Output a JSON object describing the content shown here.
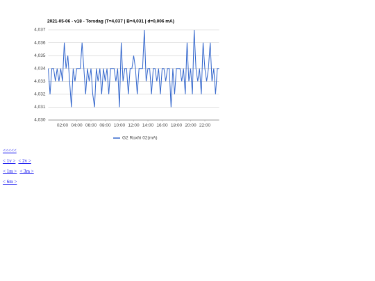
{
  "chart_data": {
    "type": "line",
    "title": "2021-05-06 - v18 - Torsdag (T=4,037 | B=4,031 | d=0,006 mA)",
    "x": [
      0,
      0.25,
      0.5,
      0.75,
      1,
      1.25,
      1.5,
      1.75,
      2,
      2.25,
      2.5,
      2.75,
      3,
      3.25,
      3.5,
      3.75,
      4,
      4.25,
      4.5,
      4.75,
      5,
      5.25,
      5.5,
      5.75,
      6,
      6.25,
      6.5,
      6.75,
      7,
      7.25,
      7.5,
      7.75,
      8,
      8.25,
      8.5,
      8.75,
      9,
      9.25,
      9.5,
      9.75,
      10,
      10.25,
      10.5,
      10.75,
      11,
      11.25,
      11.5,
      11.75,
      12,
      12.25,
      12.5,
      12.75,
      13,
      13.25,
      13.5,
      13.75,
      14,
      14.25,
      14.5,
      14.75,
      15,
      15.25,
      15.5,
      15.75,
      16,
      16.25,
      16.5,
      16.75,
      17,
      17.25,
      17.5,
      17.75,
      18,
      18.25,
      18.5,
      18.75,
      19,
      19.25,
      19.5,
      19.75,
      20,
      20.25,
      20.5,
      20.75,
      21,
      21.25,
      21.5,
      21.75,
      22,
      22.25,
      22.5,
      22.75,
      23,
      23.25,
      23.5,
      23.75,
      24
    ],
    "series": [
      {
        "name": "G2 Roxfri 02(mA)",
        "color": "#3366cc",
        "values": [
          4.034,
          4.032,
          4.034,
          4.034,
          4.033,
          4.034,
          4.033,
          4.034,
          4.033,
          4.036,
          4.034,
          4.035,
          4.033,
          4.031,
          4.034,
          4.033,
          4.034,
          4.034,
          4.034,
          4.036,
          4.034,
          4.032,
          4.034,
          4.033,
          4.034,
          4.032,
          4.031,
          4.034,
          4.033,
          4.034,
          4.032,
          4.034,
          4.033,
          4.034,
          4.032,
          4.034,
          4.034,
          4.034,
          4.033,
          4.034,
          4.031,
          4.036,
          4.033,
          4.034,
          4.034,
          4.032,
          4.034,
          4.034,
          4.035,
          4.034,
          4.032,
          4.034,
          4.034,
          4.034,
          4.037,
          4.033,
          4.034,
          4.034,
          4.032,
          4.034,
          4.034,
          4.033,
          4.034,
          4.032,
          4.034,
          4.034,
          4.033,
          4.034,
          4.034,
          4.031,
          4.034,
          4.032,
          4.034,
          4.034,
          4.034,
          4.033,
          4.034,
          4.032,
          4.036,
          4.033,
          4.034,
          4.032,
          4.037,
          4.034,
          4.033,
          4.034,
          4.032,
          4.036,
          4.034,
          4.033,
          4.034,
          4.036,
          4.033,
          4.034,
          4.032,
          4.034,
          4.034
        ]
      }
    ],
    "xlim": [
      0,
      24
    ],
    "xticks": [
      {
        "value": 2,
        "label": "02:00"
      },
      {
        "value": 4,
        "label": "04:00"
      },
      {
        "value": 6,
        "label": "06:00"
      },
      {
        "value": 8,
        "label": "08:00"
      },
      {
        "value": 10,
        "label": "10:00"
      },
      {
        "value": 12,
        "label": "12:00"
      },
      {
        "value": 14,
        "label": "14:00"
      },
      {
        "value": 16,
        "label": "16:00"
      },
      {
        "value": 18,
        "label": "18:00"
      },
      {
        "value": 20,
        "label": "20:00"
      },
      {
        "value": 22,
        "label": "22:00"
      }
    ],
    "ylim": [
      4.03,
      4.037
    ],
    "yticks": [
      {
        "value": 4.03,
        "label": "4,030"
      },
      {
        "value": 4.031,
        "label": "4,031"
      },
      {
        "value": 4.032,
        "label": "4,032"
      },
      {
        "value": 4.033,
        "label": "4,033"
      },
      {
        "value": 4.034,
        "label": "4,034"
      },
      {
        "value": 4.035,
        "label": "4,035"
      },
      {
        "value": 4.036,
        "label": "4,036"
      },
      {
        "value": 4.037,
        "label": "4,037"
      }
    ],
    "grid": true,
    "legend": "bottom"
  },
  "links": [
    [
      "<<<<<"
    ],
    [
      "< 1v >",
      "< 2v >"
    ],
    [
      "< 1m >",
      "< 3m >"
    ],
    [
      "< 6m >"
    ]
  ]
}
